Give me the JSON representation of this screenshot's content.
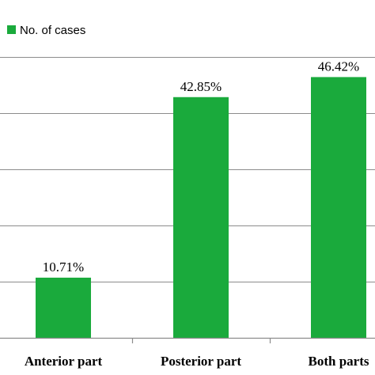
{
  "chart_data": {
    "type": "bar",
    "categories": [
      "Anterior part",
      "Posterior part",
      "Both parts"
    ],
    "series": [
      {
        "name": "No. of cases",
        "values": [
          10.71,
          42.85,
          46.42
        ],
        "labels": [
          "10.71%",
          "42.85%",
          "46.42%"
        ]
      }
    ],
    "ylim": [
      0,
      50
    ],
    "grid": true,
    "legend": "top-left",
    "bar_color": "#1aaa3c"
  }
}
